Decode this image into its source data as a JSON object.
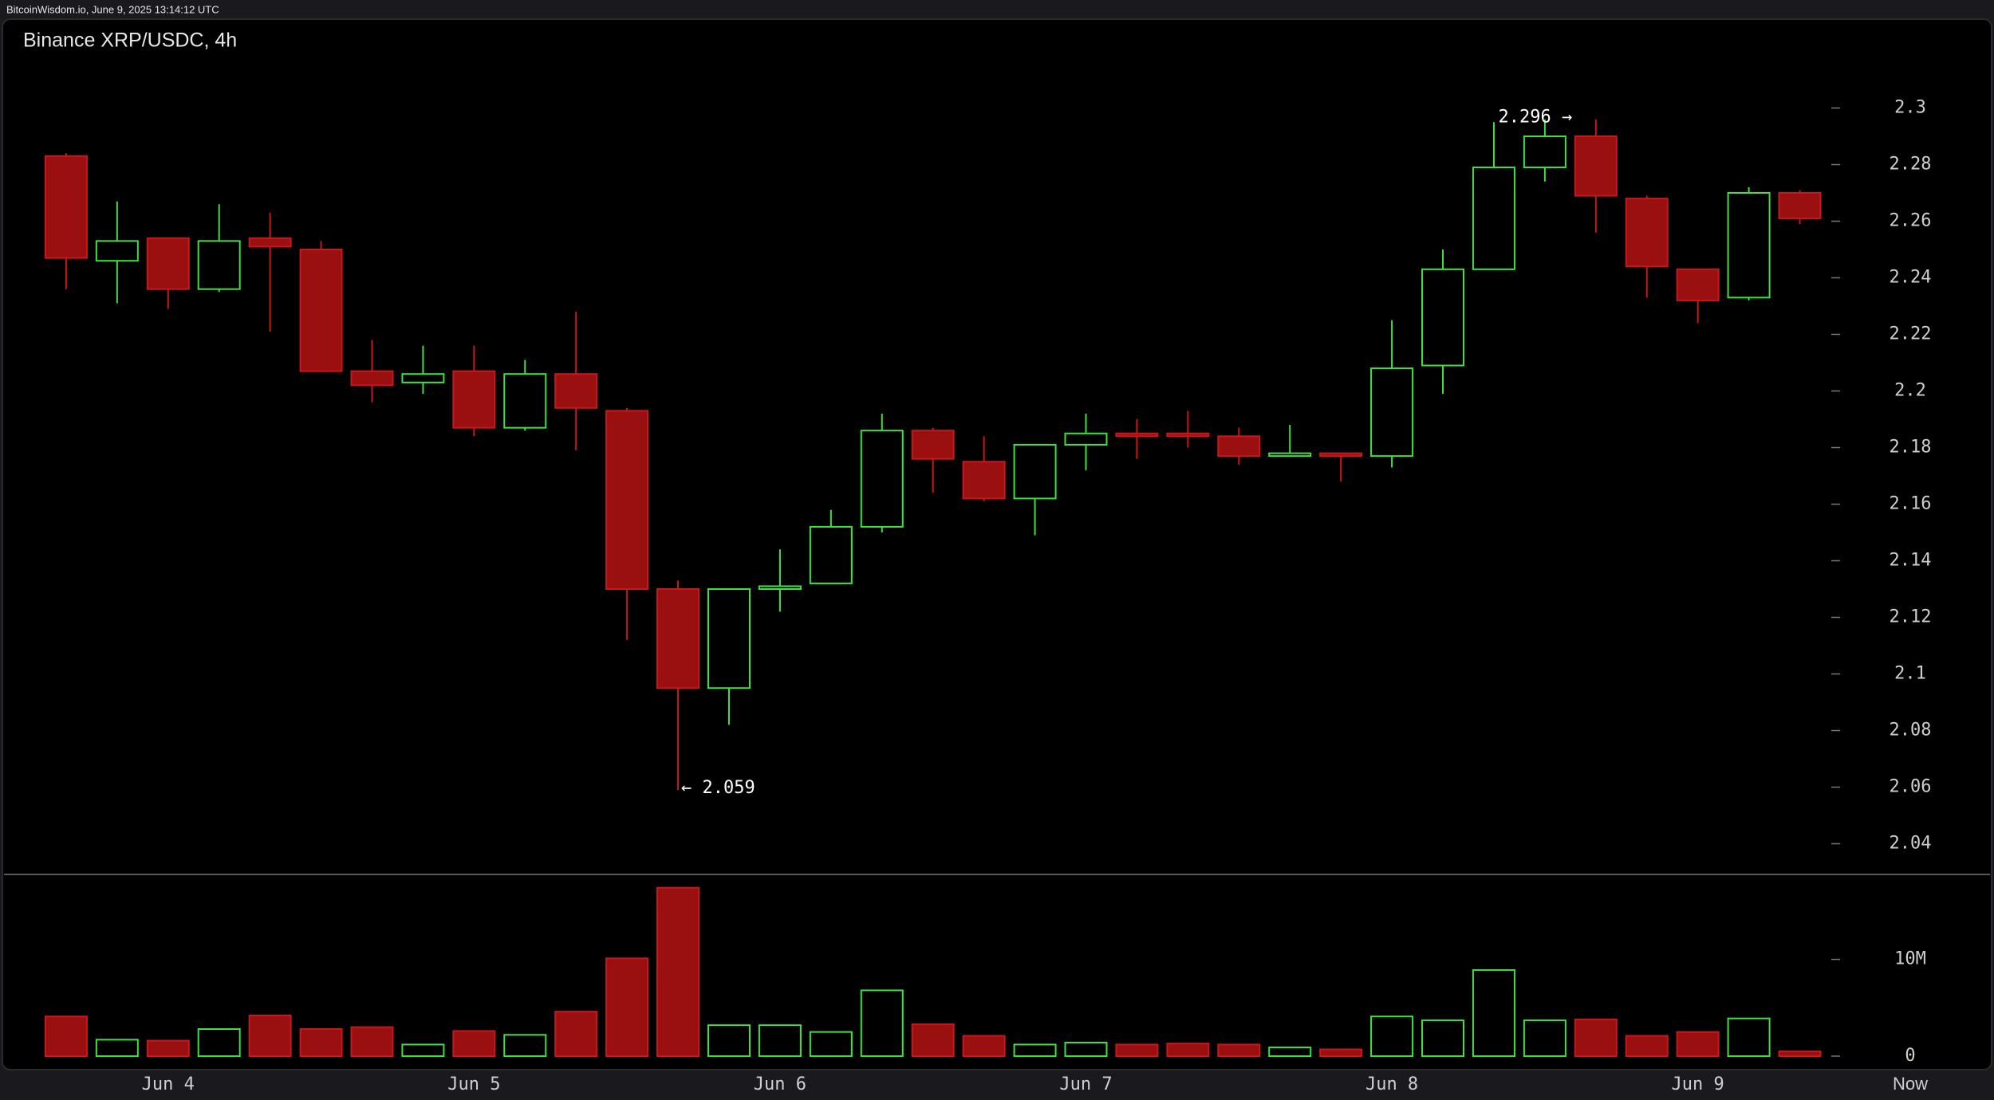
{
  "header": "BitcoinWisdom.io, June 9, 2025 13:14:12 UTC",
  "chart_data": {
    "type": "candlestick",
    "title": "Binance XRP/USDC, 4h",
    "categories": [
      null,
      null,
      "Jun 4",
      null,
      null,
      null,
      null,
      null,
      "Jun 5",
      null,
      null,
      null,
      null,
      null,
      "Jun 6",
      null,
      null,
      null,
      null,
      null,
      "Jun 7",
      null,
      null,
      null,
      null,
      null,
      "Jun 8",
      null,
      null,
      null,
      null,
      null,
      "Jun 9",
      null,
      null
    ],
    "now_label": "Now",
    "open": [
      2.283,
      2.246,
      2.254,
      2.236,
      2.254,
      2.25,
      2.207,
      2.203,
      2.207,
      2.187,
      2.206,
      2.193,
      2.13,
      2.095,
      2.13,
      2.132,
      2.152,
      2.186,
      2.175,
      2.162,
      2.181,
      2.185,
      2.185,
      2.184,
      2.177,
      2.178,
      2.177,
      2.209,
      2.243,
      2.279,
      2.29,
      2.268,
      2.243,
      2.233,
      2.27
    ],
    "high": [
      2.284,
      2.267,
      2.254,
      2.266,
      2.263,
      2.253,
      2.218,
      2.216,
      2.216,
      2.211,
      2.228,
      2.194,
      2.133,
      2.13,
      2.144,
      2.158,
      2.192,
      2.187,
      2.184,
      2.181,
      2.192,
      2.19,
      2.193,
      2.187,
      2.188,
      2.178,
      2.225,
      2.25,
      2.295,
      2.296,
      2.296,
      2.269,
      2.243,
      2.272,
      2.271
    ],
    "low": [
      2.236,
      2.231,
      2.229,
      2.235,
      2.221,
      2.207,
      2.196,
      2.199,
      2.184,
      2.186,
      2.179,
      2.112,
      2.059,
      2.082,
      2.122,
      2.132,
      2.15,
      2.164,
      2.161,
      2.149,
      2.172,
      2.176,
      2.18,
      2.174,
      2.177,
      2.168,
      2.173,
      2.199,
      2.243,
      2.274,
      2.256,
      2.233,
      2.224,
      2.232,
      2.259
    ],
    "close": [
      2.247,
      2.253,
      2.236,
      2.253,
      2.251,
      2.207,
      2.202,
      2.206,
      2.187,
      2.206,
      2.194,
      2.13,
      2.095,
      2.13,
      2.131,
      2.152,
      2.186,
      2.176,
      2.162,
      2.181,
      2.185,
      2.184,
      2.184,
      2.177,
      2.178,
      2.177,
      2.208,
      2.243,
      2.279,
      2.29,
      2.269,
      2.244,
      2.232,
      2.27,
      2.261
    ],
    "volume": [
      4.1,
      1.7,
      1.6,
      2.8,
      4.2,
      2.8,
      3.0,
      1.2,
      2.6,
      2.2,
      4.6,
      10.1,
      17.4,
      3.2,
      3.2,
      2.5,
      6.8,
      3.3,
      2.1,
      1.2,
      1.4,
      1.2,
      1.3,
      1.2,
      0.9,
      0.7,
      4.1,
      3.7,
      8.9,
      3.7,
      3.8,
      2.1,
      2.5,
      3.9,
      0.5
    ],
    "high_label": "2.296 →",
    "low_label": "← 2.059",
    "up_color": "#3ee23e",
    "down_color": "#9a1010",
    "down_edge": "#c8181a",
    "ylim": [
      2.03,
      2.32
    ],
    "yticks": [
      2.04,
      2.06,
      2.08,
      2.1,
      2.12,
      2.14,
      2.16,
      2.18,
      2.2,
      2.22,
      2.24,
      2.26,
      2.28,
      2.3
    ],
    "y2lim": [
      0,
      19
    ],
    "y2ticks": [
      0,
      {
        "value": 10,
        "label": "10M"
      }
    ]
  }
}
